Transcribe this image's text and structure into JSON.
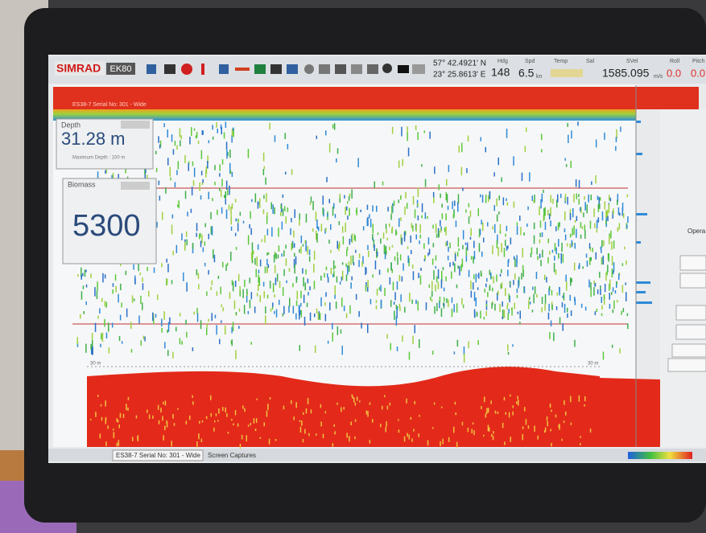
{
  "toolbar": {
    "brand": "SIMRAD",
    "model": "EK80",
    "lat": "57° 42.4921' N",
    "lon": "23° 25.8613' E",
    "hdg_label": "Hdg",
    "hdg": "148",
    "spd_label": "Spd",
    "spd": "6.5",
    "spd_unit": "kn",
    "temp_label": "Temp",
    "sal_label": "Sal",
    "svel_label": "SVel",
    "svel": "1585.095",
    "svel_unit": "m/s",
    "roll_label": "Roll",
    "roll": "0.0",
    "pitch_label": "Pitch",
    "pitch": "0.0"
  },
  "echogram": {
    "channel": "ES38-7 Serial No: 301 - Wide",
    "range_left": "30 m",
    "range_right": "30 m"
  },
  "depth_panel": {
    "title": "Depth",
    "value": "31.28 m",
    "note": "Maximum Depth : 100 m"
  },
  "biomass_panel": {
    "title": "Biomass",
    "value": "5300"
  },
  "status_bar": {
    "tabs": [
      "ES38-7 Serial No: 301 - Wide",
      "Screen Captures"
    ]
  },
  "side_panel": {
    "label": "Opera"
  }
}
